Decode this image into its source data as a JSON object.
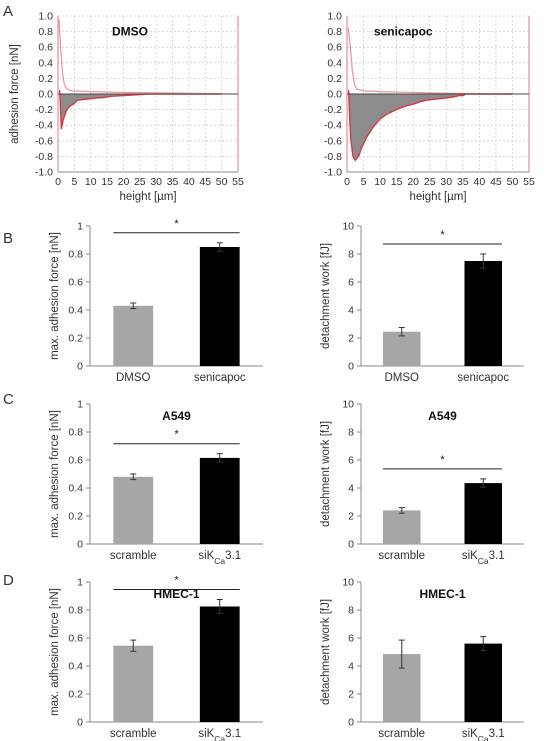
{
  "figure": {
    "panel_labels": [
      "A",
      "B",
      "C",
      "D"
    ]
  },
  "chart_data": [
    {
      "type": "area",
      "panel": "A",
      "title": "DMSO",
      "xlabel": "height [µm]",
      "ylabel": "adhesion force [nN]",
      "xlim": [
        0,
        55
      ],
      "ylim": [
        -1.0,
        1.0
      ],
      "x_ticks": [
        0,
        5,
        10,
        15,
        20,
        25,
        30,
        35,
        40,
        45,
        50,
        55
      ],
      "y_ticks": [
        -1.0,
        -0.8,
        -0.6,
        -0.4,
        -0.2,
        0.0,
        0.2,
        0.4,
        0.6,
        0.8,
        1.0
      ],
      "grid": true,
      "approach_curve": [
        [
          0.3,
          0.95
        ],
        [
          0.8,
          0.6
        ],
        [
          1.3,
          0.3
        ],
        [
          1.8,
          0.15
        ],
        [
          2.5,
          0.07
        ],
        [
          4,
          0.04
        ],
        [
          10,
          0.03
        ],
        [
          20,
          0.02
        ],
        [
          30,
          0.015
        ],
        [
          40,
          0.01
        ],
        [
          50,
          0.005
        ]
      ],
      "retract_curve": [
        [
          0.5,
          0.05
        ],
        [
          0.8,
          -0.2
        ],
        [
          1.0,
          -0.45
        ],
        [
          1.6,
          -0.33
        ],
        [
          2.5,
          -0.22
        ],
        [
          3.5,
          -0.16
        ],
        [
          5,
          -0.12
        ],
        [
          6,
          -0.08
        ],
        [
          8,
          -0.07
        ],
        [
          10,
          -0.06
        ],
        [
          12,
          -0.05
        ],
        [
          14,
          -0.045
        ],
        [
          16,
          -0.03
        ],
        [
          18,
          -0.025
        ],
        [
          20,
          -0.02
        ],
        [
          22,
          -0.015
        ],
        [
          24,
          -0.01
        ],
        [
          26,
          -0.005
        ],
        [
          27,
          0.0
        ],
        [
          30,
          0.0
        ],
        [
          40,
          0.0
        ],
        [
          50,
          0.0
        ]
      ]
    },
    {
      "type": "area",
      "panel": "A",
      "title": "senicapoc",
      "xlabel": "height [µm]",
      "ylabel": "",
      "xlim": [
        0,
        55
      ],
      "ylim": [
        -1.0,
        1.0
      ],
      "x_ticks": [
        0,
        5,
        10,
        15,
        20,
        25,
        30,
        35,
        40,
        45,
        50,
        55
      ],
      "y_ticks": [
        -1.0,
        -0.8,
        -0.6,
        -0.4,
        -0.2,
        0.0,
        0.2,
        0.4,
        0.6,
        0.8,
        1.0
      ],
      "grid": true,
      "approach_curve": [
        [
          0.4,
          0.85
        ],
        [
          1.0,
          0.6
        ],
        [
          1.6,
          0.3
        ],
        [
          2.3,
          0.12
        ],
        [
          3,
          0.06
        ],
        [
          5,
          0.04
        ],
        [
          10,
          0.03
        ],
        [
          20,
          0.02
        ],
        [
          30,
          0.01
        ],
        [
          40,
          0.005
        ],
        [
          50,
          0.0
        ]
      ],
      "retract_curve": [
        [
          0.5,
          0.05
        ],
        [
          0.8,
          -0.3
        ],
        [
          1.2,
          -0.6
        ],
        [
          1.8,
          -0.8
        ],
        [
          2.5,
          -0.85
        ],
        [
          3.5,
          -0.8
        ],
        [
          4.5,
          -0.68
        ],
        [
          6,
          -0.55
        ],
        [
          8,
          -0.42
        ],
        [
          10,
          -0.32
        ],
        [
          12,
          -0.26
        ],
        [
          14,
          -0.22
        ],
        [
          16,
          -0.18
        ],
        [
          18,
          -0.15
        ],
        [
          20,
          -0.13
        ],
        [
          22,
          -0.1
        ],
        [
          24,
          -0.08
        ],
        [
          26,
          -0.07
        ],
        [
          28,
          -0.06
        ],
        [
          30,
          -0.05
        ],
        [
          32,
          -0.04
        ],
        [
          34,
          -0.02
        ],
        [
          35,
          -0.02
        ],
        [
          36,
          0.0
        ],
        [
          40,
          0.0
        ],
        [
          50,
          0.0
        ]
      ]
    },
    {
      "type": "bar",
      "panel": "B",
      "title": "",
      "categories": [
        "DMSO",
        "senicapoc"
      ],
      "values": [
        0.43,
        0.85
      ],
      "errors": [
        0.02,
        0.03
      ],
      "colors": [
        "#a6a6a6",
        "#000000"
      ],
      "ylabel": "max. adhesion force [nN]",
      "ylim": [
        0,
        1
      ],
      "y_ticks": [
        0,
        0.2,
        0.4,
        0.6,
        0.8,
        1
      ],
      "significance": "*"
    },
    {
      "type": "bar",
      "panel": "B",
      "title": "",
      "categories": [
        "DMSO",
        "senicapoc"
      ],
      "values": [
        2.45,
        7.5
      ],
      "errors": [
        0.3,
        0.5
      ],
      "colors": [
        "#a6a6a6",
        "#000000"
      ],
      "ylabel": "detachment work [fJ]",
      "ylim": [
        0,
        10
      ],
      "y_ticks": [
        0,
        2,
        4,
        6,
        8,
        10
      ],
      "significance": "*"
    },
    {
      "type": "bar",
      "panel": "C",
      "title": "A549",
      "categories": [
        "scramble",
        "siKCa3.1"
      ],
      "values": [
        0.48,
        0.615
      ],
      "errors": [
        0.02,
        0.03
      ],
      "colors": [
        "#a6a6a6",
        "#000000"
      ],
      "ylabel": "max. adhesion force [nN]",
      "ylim": [
        0,
        1
      ],
      "y_ticks": [
        0,
        0.2,
        0.4,
        0.6,
        0.8,
        1
      ],
      "significance": "*"
    },
    {
      "type": "bar",
      "panel": "C",
      "title": "A549",
      "categories": [
        "scramble",
        "siKCa3.1"
      ],
      "values": [
        2.4,
        4.35
      ],
      "errors": [
        0.2,
        0.3
      ],
      "colors": [
        "#a6a6a6",
        "#000000"
      ],
      "ylabel": "detachment work [fJ]",
      "ylim": [
        0,
        10
      ],
      "y_ticks": [
        0,
        2,
        4,
        6,
        8,
        10
      ],
      "significance": "*"
    },
    {
      "type": "bar",
      "panel": "D",
      "title": "HMEC-1",
      "categories": [
        "scramble",
        "siKCa3.1"
      ],
      "values": [
        0.545,
        0.825
      ],
      "errors": [
        0.04,
        0.05
      ],
      "colors": [
        "#a6a6a6",
        "#000000"
      ],
      "ylabel": "max. adhesion force [nN]",
      "ylim": [
        0,
        1
      ],
      "y_ticks": [
        0,
        0.2,
        0.4,
        0.6,
        0.8,
        1
      ],
      "significance": "*"
    },
    {
      "type": "bar",
      "panel": "D",
      "title": "HMEC-1",
      "categories": [
        "scramble",
        "siKCa3.1"
      ],
      "values": [
        4.85,
        5.6
      ],
      "errors": [
        1.0,
        0.5
      ],
      "colors": [
        "#a6a6a6",
        "#000000"
      ],
      "ylabel": "detachment work [fJ]",
      "ylim": [
        0,
        10
      ],
      "y_ticks": [
        0,
        2,
        4,
        6,
        8,
        10
      ],
      "significance": ""
    }
  ]
}
